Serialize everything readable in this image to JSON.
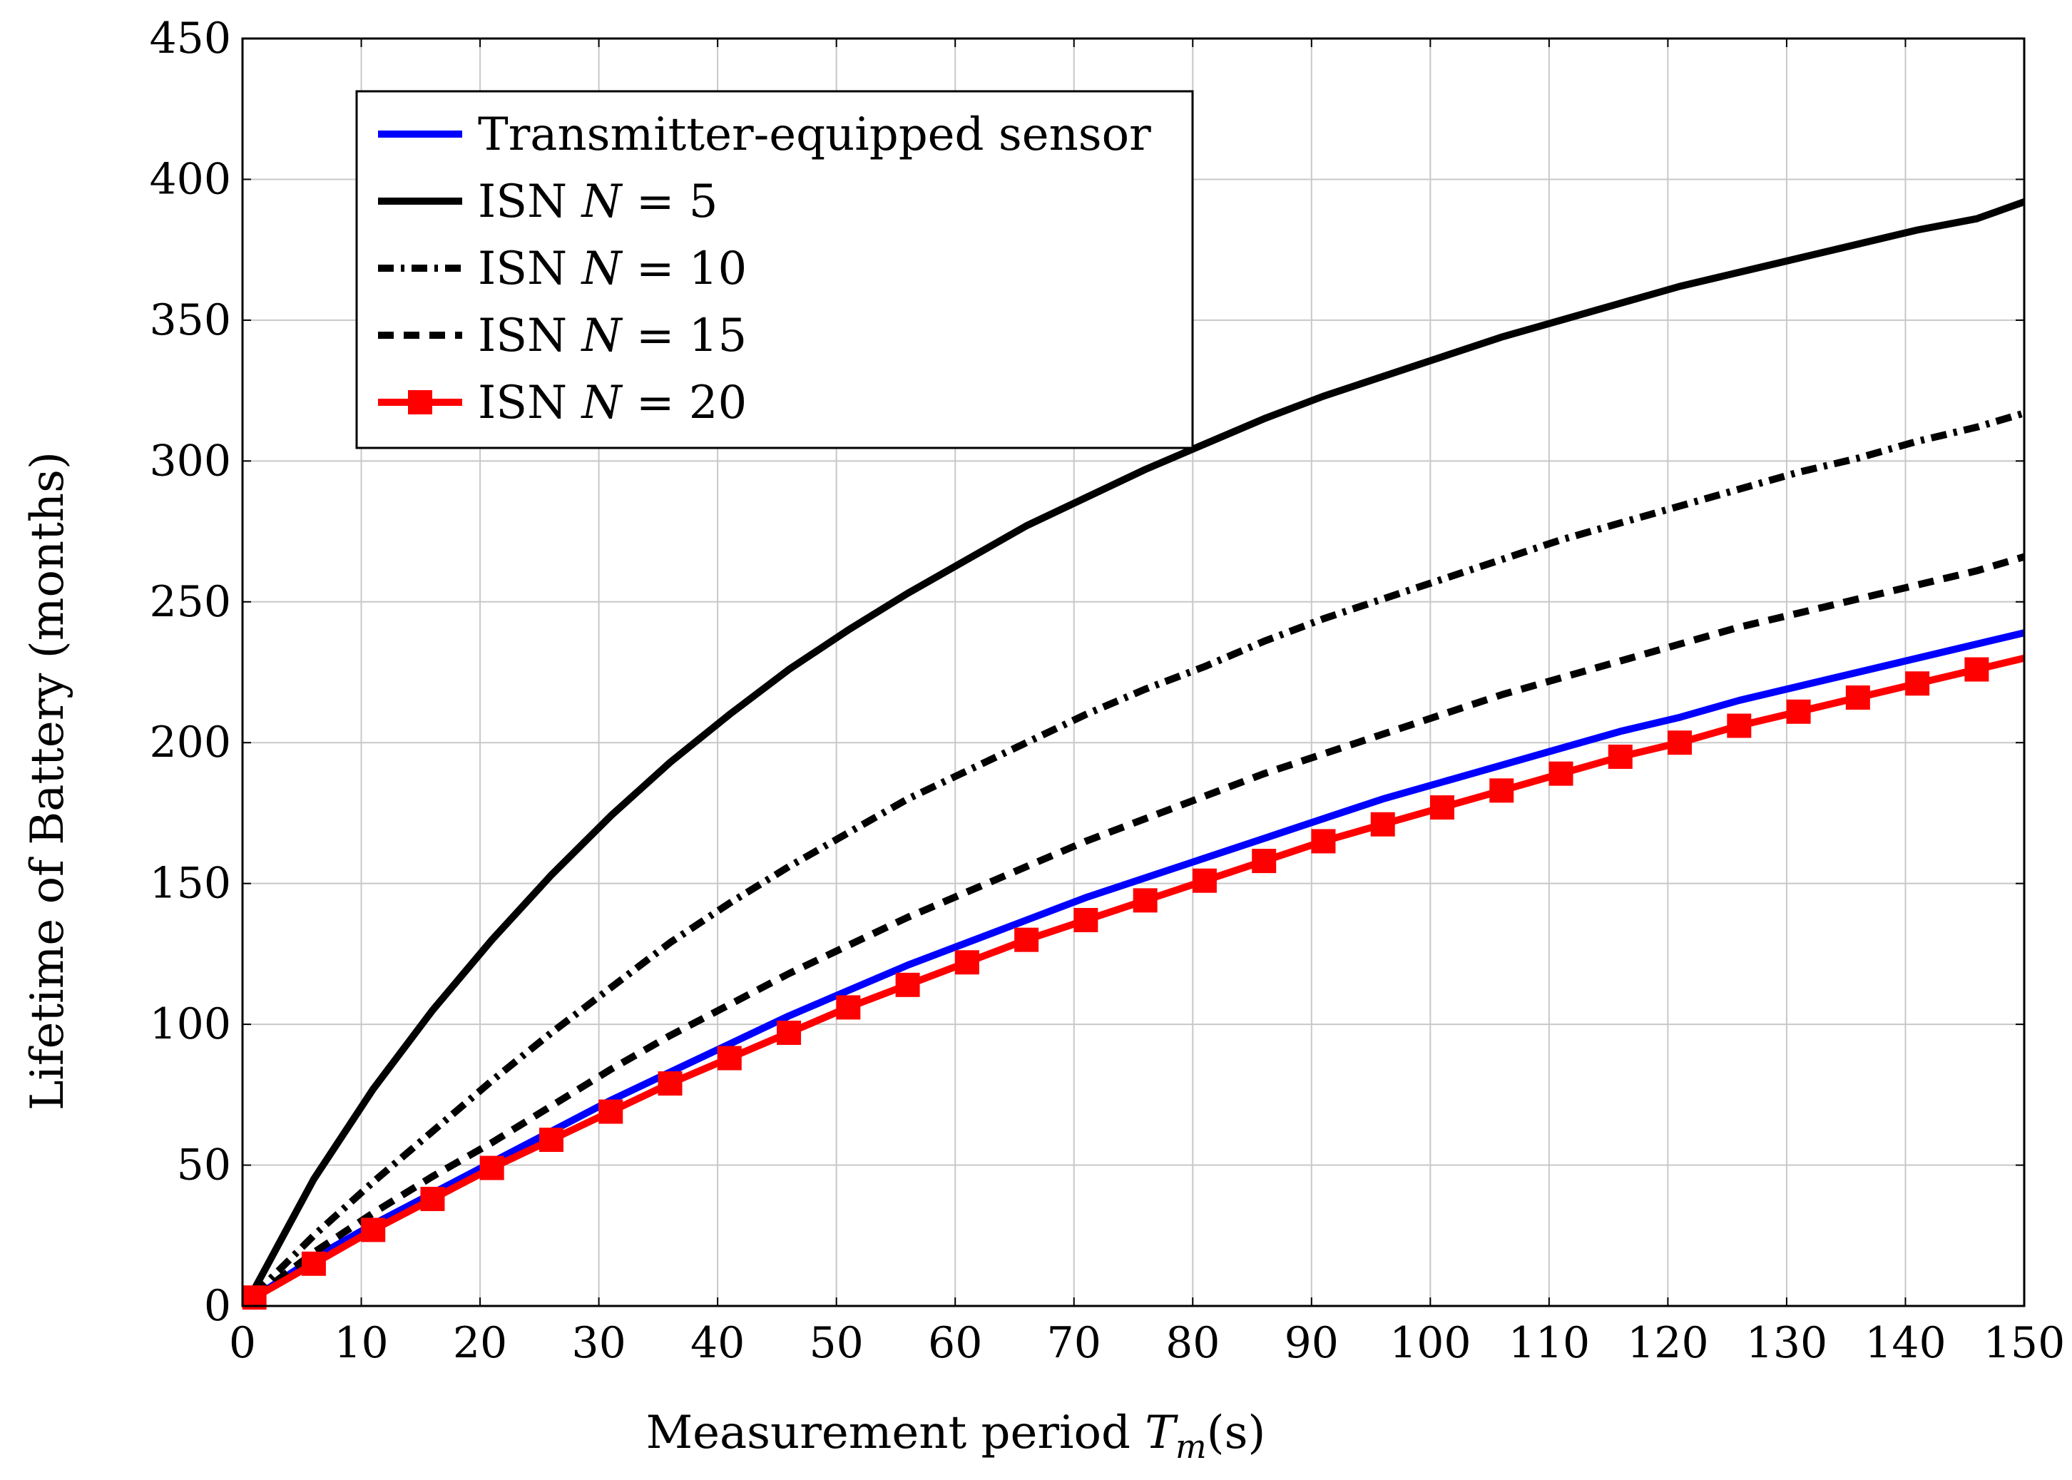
{
  "chart_data": {
    "type": "line",
    "title": "",
    "xlabel": "Measurement period",
    "xlabel_math": "T",
    "xlabel_sub": "m",
    "xlabel_unit": "(s)",
    "ylabel": "Lifetime of Battery (months)",
    "xlim": [
      0,
      150
    ],
    "ylim": [
      0,
      450
    ],
    "x_ticks": [
      0,
      10,
      20,
      30,
      40,
      50,
      60,
      70,
      80,
      90,
      100,
      110,
      120,
      130,
      140,
      150
    ],
    "y_ticks": [
      0,
      50,
      100,
      150,
      200,
      250,
      300,
      350,
      400,
      450
    ],
    "grid": true,
    "legend_position": "top-left",
    "x": [
      1,
      6,
      11,
      16,
      21,
      26,
      31,
      36,
      41,
      46,
      51,
      56,
      61,
      66,
      71,
      76,
      81,
      86,
      91,
      96,
      101,
      106,
      111,
      116,
      121,
      126,
      131,
      136,
      141,
      146,
      150
    ],
    "series": [
      {
        "name": "Transmitter-equipped sensor",
        "legend_prefix": "Transmitter-equipped sensor",
        "legend_n": "",
        "color": "#0000ff",
        "style": "solid",
        "marker": "none",
        "values": [
          3,
          17,
          29,
          40,
          51,
          62,
          73,
          83,
          93,
          103,
          112,
          121,
          129,
          137,
          145,
          152,
          159,
          166,
          173,
          180,
          186,
          192,
          198,
          204,
          209,
          215,
          220,
          225,
          230,
          235,
          239
        ]
      },
      {
        "name": "ISN N = 5",
        "legend_prefix": "ISN",
        "legend_n": "5",
        "color": "#000000",
        "style": "solid",
        "marker": "none",
        "values": [
          6,
          45,
          77,
          105,
          130,
          153,
          174,
          193,
          210,
          226,
          240,
          253,
          265,
          277,
          287,
          297,
          306,
          315,
          323,
          330,
          337,
          344,
          350,
          356,
          362,
          367,
          372,
          377,
          382,
          386,
          392
        ]
      },
      {
        "name": "ISN N = 10",
        "legend_prefix": "ISN",
        "legend_n": "10",
        "color": "#000000",
        "style": "dashdot",
        "marker": "none",
        "values": [
          4,
          25,
          44,
          62,
          80,
          97,
          113,
          129,
          143,
          156,
          168,
          180,
          190,
          200,
          210,
          219,
          227,
          236,
          244,
          251,
          258,
          265,
          272,
          278,
          284,
          290,
          296,
          301,
          307,
          312,
          317
        ]
      },
      {
        "name": "ISN N = 15",
        "legend_prefix": "ISN",
        "legend_n": "15",
        "color": "#000000",
        "style": "dashed",
        "marker": "none",
        "values": [
          3,
          19,
          33,
          46,
          58,
          71,
          84,
          96,
          107,
          118,
          128,
          138,
          147,
          156,
          165,
          173,
          181,
          189,
          196,
          203,
          210,
          217,
          223,
          229,
          235,
          241,
          246,
          251,
          256,
          261,
          266
        ]
      },
      {
        "name": "ISN N = 20",
        "legend_prefix": "ISN",
        "legend_n": "20",
        "color": "#ff0000",
        "style": "solid",
        "marker": "square",
        "values": [
          3,
          15,
          27,
          38,
          49,
          59,
          69,
          79,
          88,
          97,
          106,
          114,
          122,
          130,
          137,
          144,
          151,
          158,
          165,
          171,
          177,
          183,
          189,
          195,
          200,
          206,
          211,
          216,
          221,
          226,
          230
        ]
      }
    ]
  }
}
